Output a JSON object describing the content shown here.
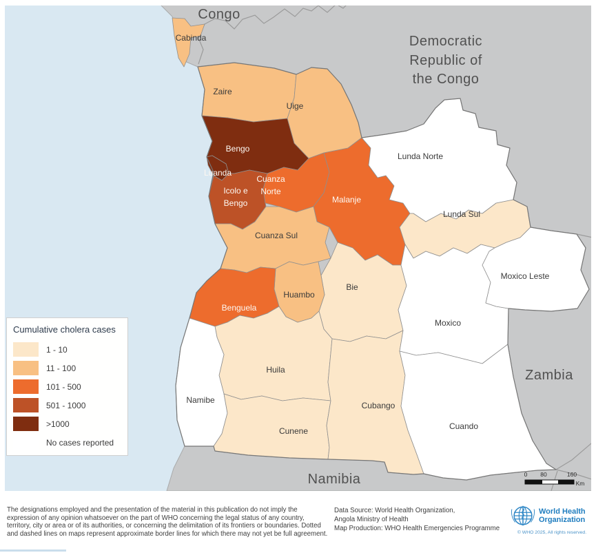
{
  "map": {
    "ocean_color": "#D9E8F2",
    "neighbor_color": "#C8C9CA",
    "countries": {
      "congo": {
        "name": "Congo"
      },
      "drc": {
        "lines": [
          "Democratic",
          "Republic of",
          "the Congo"
        ]
      },
      "zambia": {
        "name": "Zambia"
      },
      "namibia": {
        "name": "Namibia"
      }
    },
    "provinces": {
      "cabinda": {
        "name": "Cabinda",
        "cases": "11 - 100"
      },
      "zaire": {
        "name": "Zaire",
        "cases": "11 - 100"
      },
      "uige": {
        "name": "Uige",
        "cases": "11 - 100"
      },
      "bengo": {
        "name": "Bengo",
        "cases": ">1000"
      },
      "luanda": {
        "name": "Luanda",
        "cases": ">1000"
      },
      "icolo_e_bengo": {
        "name": "Icolo e Bengo",
        "lines": [
          "Icolo e",
          "Bengo"
        ],
        "cases": "501 - 1000"
      },
      "cuanza_norte": {
        "name": "Cuanza Norte",
        "lines": [
          "Cuanza",
          "Norte"
        ],
        "cases": "101 - 500"
      },
      "malanje": {
        "name": "Malanje",
        "cases": "101 - 500"
      },
      "lunda_norte": {
        "name": "Lunda Norte",
        "cases": "No cases reported"
      },
      "lunda_sul": {
        "name": "Lunda Sul",
        "cases": "1 - 10"
      },
      "cuanza_sul": {
        "name": "Cuanza Sul",
        "cases": "11 - 100"
      },
      "bie": {
        "name": "Bie",
        "cases": "1 - 10"
      },
      "huambo": {
        "name": "Huambo",
        "cases": "11 - 100"
      },
      "benguela": {
        "name": "Benguela",
        "cases": "101 - 500"
      },
      "huila": {
        "name": "Huila",
        "cases": "1 - 10"
      },
      "namibe": {
        "name": "Namibe",
        "cases": "No cases reported"
      },
      "cubango": {
        "name": "Cubango",
        "cases": "1 - 10"
      },
      "cunene": {
        "name": "Cunene",
        "cases": "1 - 10"
      },
      "cuando": {
        "name": "Cuando",
        "cases": "No cases reported"
      },
      "moxico": {
        "name": "Moxico",
        "cases": "No cases reported"
      },
      "moxico_leste": {
        "name": "Moxico Leste",
        "cases": "No cases reported"
      }
    },
    "scale_bar": {
      "tick0": "0",
      "tick1": "80",
      "tick2": "160",
      "unit": "Km"
    }
  },
  "legend": {
    "title": "Cumulative cholera cases",
    "colors": {
      "band1": "#FCE7C9",
      "band2": "#F8C083",
      "band3": "#ED6C2D",
      "band4": "#BD5227",
      "band5": "#7F2D10",
      "none": "#FFFFFF"
    },
    "items": [
      {
        "label": "1 - 10",
        "key": "band1"
      },
      {
        "label": "11 - 100",
        "key": "band2"
      },
      {
        "label": "101 - 500",
        "key": "band3"
      },
      {
        "label": "501 - 1000",
        "key": "band4"
      },
      {
        "label": ">1000",
        "key": "band5"
      },
      {
        "label": "No cases reported",
        "key": "none"
      }
    ]
  },
  "footer": {
    "disclaimer": "The designations employed and the presentation of the material in this publication do not imply the expression of any opinion whatsoever on the part of WHO concerning the legal status of any country, territory, city or area or of its authorities, or concerning the delimitation of its frontiers or boundaries. Dotted and dashed lines on maps represent approximate border lines for which there may not yet be full agreement.",
    "source_line1": "Data Source: World Health Organization,",
    "source_line2": "Angola Ministry of Health",
    "source_line3": "Map Production: WHO Health Emergencies Programme",
    "who": {
      "name_line1": "World Health",
      "name_line2": "Organization",
      "copyright": "© WHO 2025, All rights reserved.",
      "blue": "#1F7DBF"
    }
  }
}
